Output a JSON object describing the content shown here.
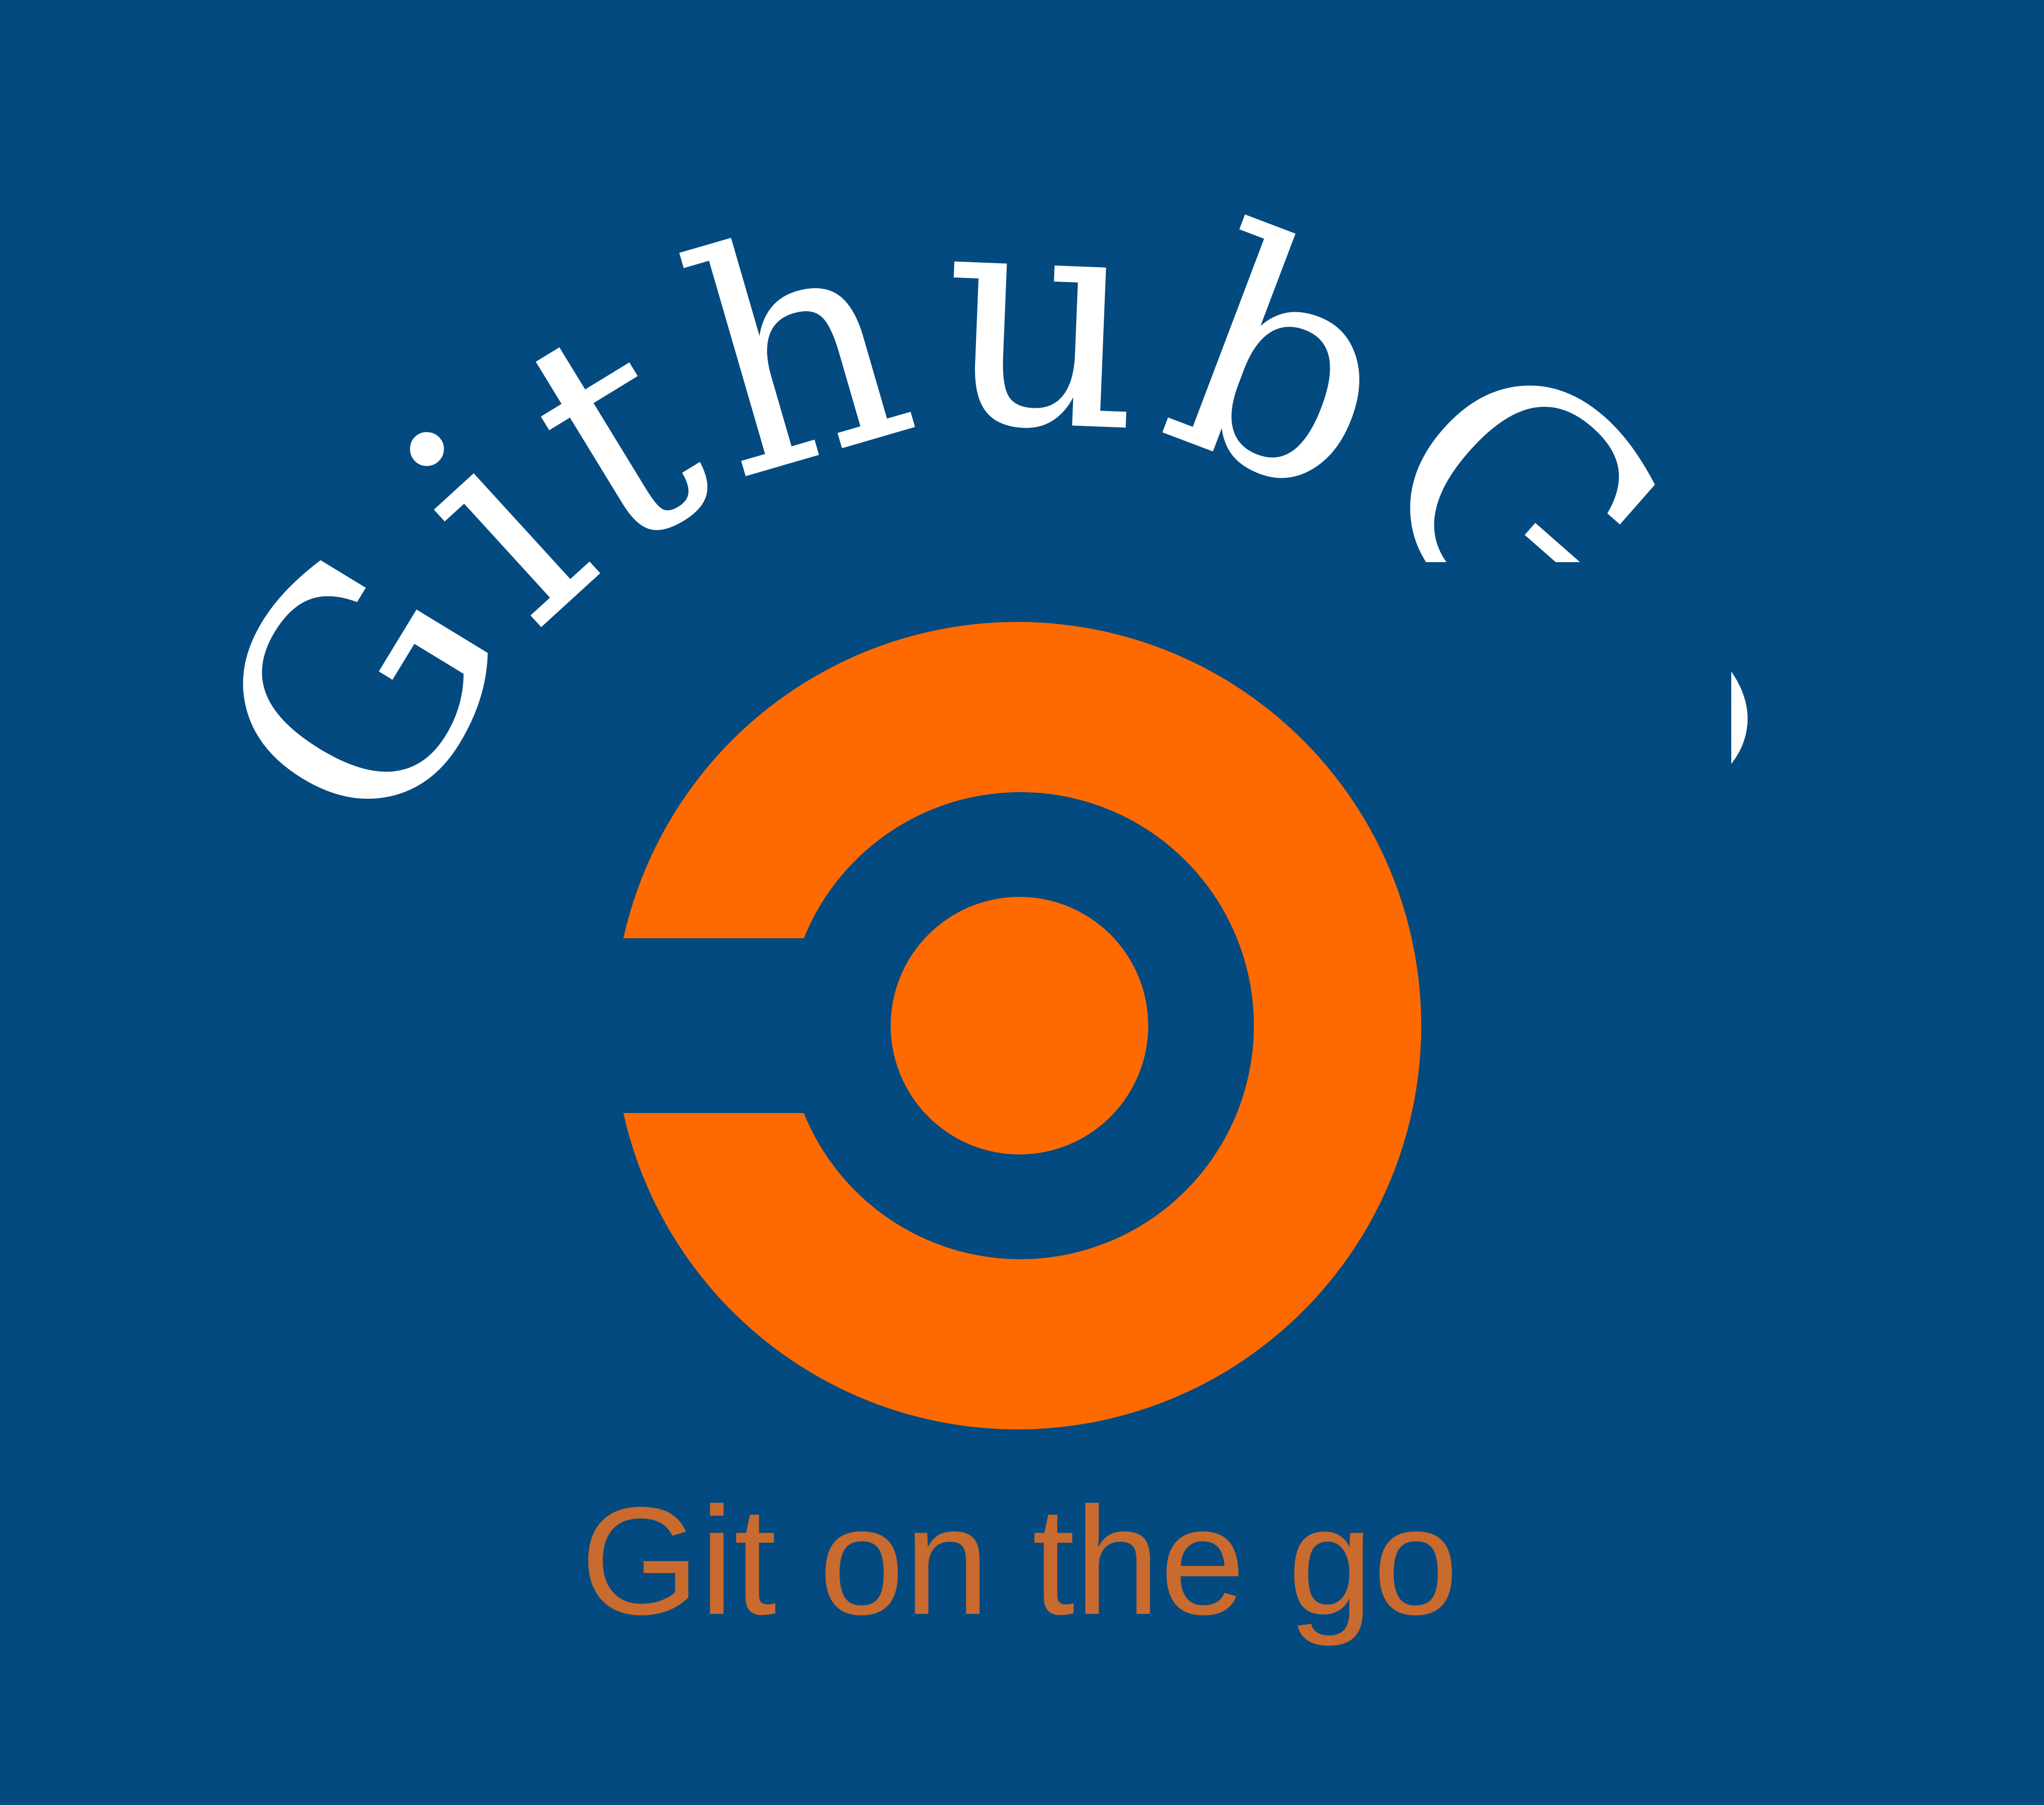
{
  "brand": {
    "name": "GithubGo",
    "tagline": "Git on the go",
    "colors": {
      "background": "#034A80",
      "accent": "#FF6A00",
      "tagline": "#C96A2E",
      "title": "#ffffff"
    }
  },
  "logo": {
    "icon_name": "ring-dot-logo-icon"
  }
}
